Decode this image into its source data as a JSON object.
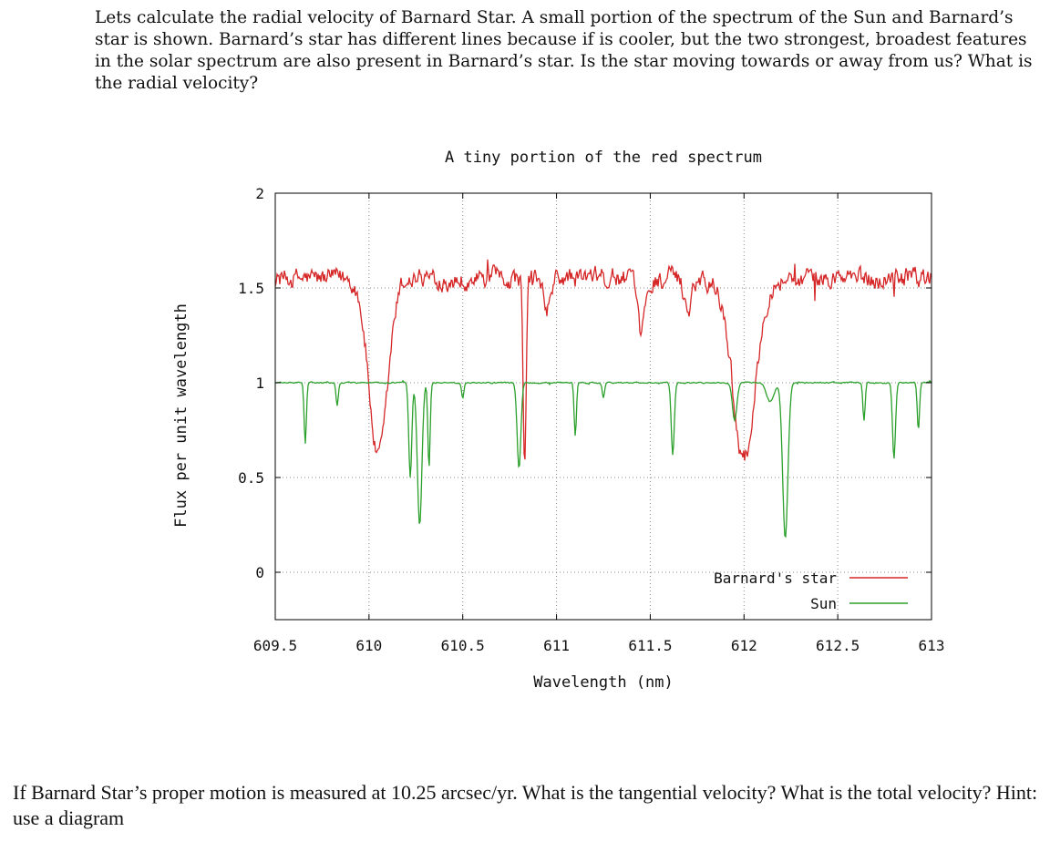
{
  "intro_text": "Lets calculate the radial velocity of Barnard Star. A small portion of the spectrum of the Sun and Barnard’s star is shown. Barnard’s star has different lines because if is cooler, but the two strongest, broadest features in the solar spectrum are also present in Barnard’s star. Is the star moving towards or away from us? What is the radial velocity?",
  "question_text": "If Barnard Star’s proper motion is measured at 10.25 arcsec/yr. What is the tangential velocity? What is the total velocity? Hint: use a diagram",
  "chart_data": {
    "type": "line",
    "title": "A tiny portion of the red spectrum",
    "xlabel": "Wavelength (nm)",
    "ylabel": "Flux per unit wavelength",
    "xlim": [
      609.5,
      613
    ],
    "ylim": [
      -0.25,
      2
    ],
    "xticks": [
      609.5,
      610,
      610.5,
      611,
      611.5,
      612,
      612.5,
      613
    ],
    "xtick_labels": [
      "609.5",
      "610",
      "610.5",
      "611",
      "611.5",
      "612",
      "612.5",
      "613"
    ],
    "yticks": [
      0,
      0.5,
      1,
      1.5,
      2
    ],
    "ytick_labels": [
      "0",
      "0.5",
      "1",
      "1.5",
      "2"
    ],
    "grid": true,
    "legend_position": "bottom-right",
    "series": [
      {
        "name": "Barnard's star",
        "color": "#d62728",
        "continuum": 1.55,
        "noise": 0.09,
        "absorption_lines": [
          {
            "center": 610.05,
            "depth": 0.95,
            "width": 0.05
          },
          {
            "center": 610.83,
            "depth": 1.05,
            "width": 0.008
          },
          {
            "center": 611.45,
            "depth": 0.3,
            "width": 0.02
          },
          {
            "center": 612.0,
            "depth": 0.95,
            "width": 0.06
          },
          {
            "center": 610.95,
            "depth": 0.15,
            "width": 0.02
          },
          {
            "center": 611.7,
            "depth": 0.15,
            "width": 0.02
          }
        ]
      },
      {
        "name": "Sun",
        "color": "#2ca02c",
        "continuum": 1.0,
        "noise": 0.006,
        "absorption_lines": [
          {
            "center": 609.66,
            "depth": 0.32,
            "width": 0.006
          },
          {
            "center": 609.83,
            "depth": 0.12,
            "width": 0.006
          },
          {
            "center": 610.22,
            "depth": 0.5,
            "width": 0.008
          },
          {
            "center": 610.27,
            "depth": 0.75,
            "width": 0.012
          },
          {
            "center": 610.32,
            "depth": 0.45,
            "width": 0.006
          },
          {
            "center": 610.5,
            "depth": 0.08,
            "width": 0.006
          },
          {
            "center": 610.8,
            "depth": 0.45,
            "width": 0.01
          },
          {
            "center": 611.1,
            "depth": 0.28,
            "width": 0.006
          },
          {
            "center": 611.25,
            "depth": 0.08,
            "width": 0.006
          },
          {
            "center": 611.62,
            "depth": 0.38,
            "width": 0.008
          },
          {
            "center": 611.95,
            "depth": 0.2,
            "width": 0.012
          },
          {
            "center": 612.22,
            "depth": 0.82,
            "width": 0.014
          },
          {
            "center": 612.14,
            "depth": 0.1,
            "width": 0.02
          },
          {
            "center": 612.64,
            "depth": 0.2,
            "width": 0.006
          },
          {
            "center": 612.8,
            "depth": 0.4,
            "width": 0.008
          },
          {
            "center": 612.93,
            "depth": 0.25,
            "width": 0.006
          }
        ]
      }
    ]
  }
}
